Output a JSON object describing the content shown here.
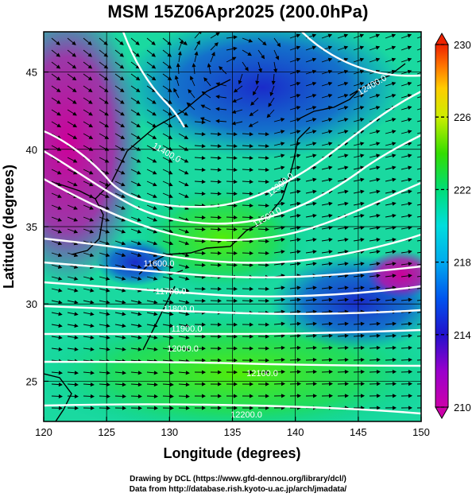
{
  "title": "MSM 15Z06Apr2025 (200.0hPa)",
  "chart_data": {
    "type": "map",
    "xlabel": "Longitude (degrees)",
    "ylabel": "Latitude  (degrees)",
    "xlim": [
      120,
      150
    ],
    "ylim": [
      22.4,
      47.6
    ],
    "xticks": [
      "120",
      "125",
      "130",
      "135",
      "140",
      "145",
      "150"
    ],
    "yticks": [
      "25",
      "30",
      "35",
      "40",
      "45"
    ],
    "grid": true,
    "colorbar": {
      "min": 210,
      "max": 230,
      "ticks": [
        "210",
        "214",
        "218",
        "222",
        "226",
        "230"
      ],
      "colors": [
        "#cc00aa",
        "#9900cc",
        "#2211cc",
        "#0055ee",
        "#00aaee",
        "#00dddd",
        "#00dd77",
        "#33dd00",
        "#ccee00",
        "#ffcc00",
        "#ff7700",
        "#ee2200"
      ]
    },
    "contour_labels": [
      "11400.0",
      "11500.0",
      "11600.0",
      "11700.0",
      "11800.0",
      "11900.0",
      "12000.0",
      "12100.0",
      "12200.0",
      "12300.0",
      "12400.0"
    ]
  },
  "footer": {
    "line1": "Drawing by DCL (https://www.gfd-dennou.org/library/dcl/)",
    "line2": "Data from http://database.rish.kyoto-u.ac.jp/arch/jmadata/"
  }
}
